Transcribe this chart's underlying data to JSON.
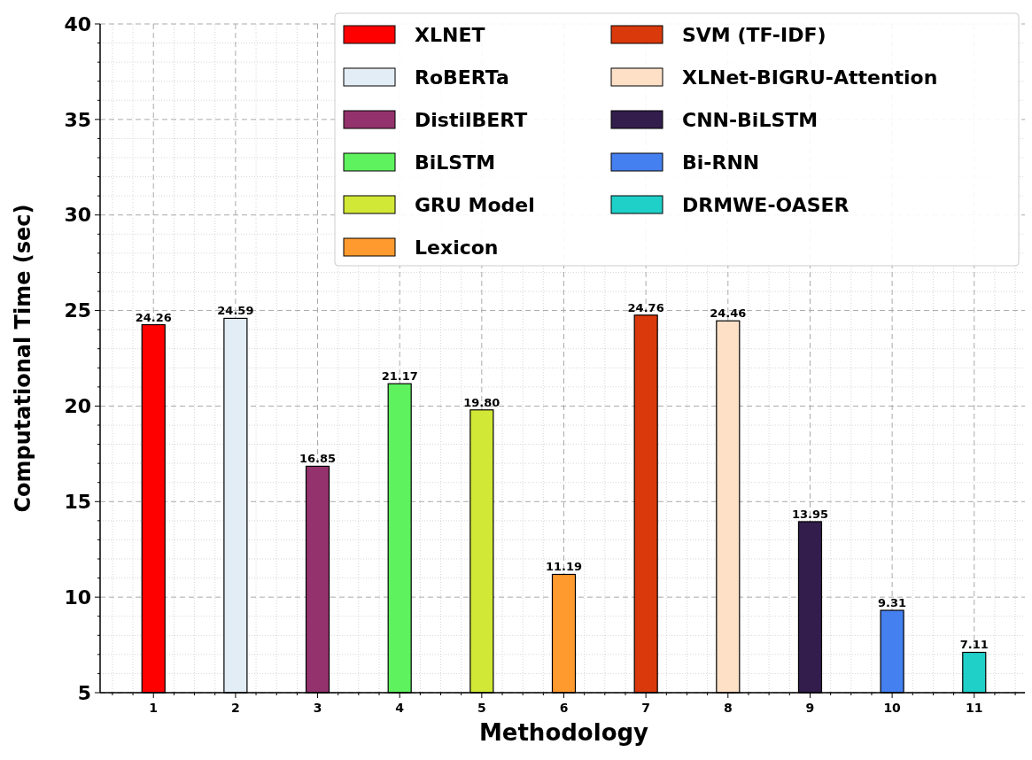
{
  "chart_data": {
    "type": "bar",
    "xlabel": "Methodology",
    "ylabel": "Computational Time (sec)",
    "categories": [
      "1",
      "2",
      "3",
      "4",
      "5",
      "6",
      "7",
      "8",
      "9",
      "10",
      "11"
    ],
    "series": [
      {
        "name": "XLNET",
        "color": "#ff0000",
        "values": [
          24.26,
          null,
          null,
          null,
          null,
          null,
          null,
          null,
          null,
          null,
          null
        ],
        "value_labels": [
          "24.26",
          null,
          null,
          null,
          null,
          null,
          null,
          null,
          null,
          null,
          null
        ]
      },
      {
        "name": "RoBERTa",
        "color": "#e2edf5",
        "values": [
          null,
          24.59,
          null,
          null,
          null,
          null,
          null,
          null,
          null,
          null,
          null
        ],
        "value_labels": [
          null,
          "24.59",
          null,
          null,
          null,
          null,
          null,
          null,
          null,
          null,
          null
        ]
      },
      {
        "name": "DistilBERT",
        "color": "#93326c",
        "values": [
          null,
          null,
          16.85,
          null,
          null,
          null,
          null,
          null,
          null,
          null,
          null
        ],
        "value_labels": [
          null,
          null,
          "16.85",
          null,
          null,
          null,
          null,
          null,
          null,
          null,
          null
        ]
      },
      {
        "name": "BiLSTM",
        "color": "#5ef25e",
        "values": [
          null,
          null,
          null,
          21.17,
          null,
          null,
          null,
          null,
          null,
          null,
          null
        ],
        "value_labels": [
          null,
          null,
          null,
          "21.17",
          null,
          null,
          null,
          null,
          null,
          null,
          null
        ]
      },
      {
        "name": "GRU Model",
        "color": "#d2e836",
        "values": [
          null,
          null,
          null,
          null,
          19.8,
          null,
          null,
          null,
          null,
          null,
          null
        ],
        "value_labels": [
          null,
          null,
          null,
          null,
          "19.80",
          null,
          null,
          null,
          null,
          null,
          null
        ]
      },
      {
        "name": "Lexicon",
        "color": "#ff9a2e",
        "values": [
          null,
          null,
          null,
          null,
          null,
          11.19,
          null,
          null,
          null,
          null,
          null
        ],
        "value_labels": [
          null,
          null,
          null,
          null,
          null,
          "11.19",
          null,
          null,
          null,
          null,
          null
        ]
      },
      {
        "name": "SVM (TF-IDF)",
        "color": "#d9390b",
        "values": [
          null,
          null,
          null,
          null,
          null,
          null,
          24.76,
          null,
          null,
          null,
          null
        ],
        "value_labels": [
          null,
          null,
          null,
          null,
          null,
          null,
          "24.76",
          null,
          null,
          null,
          null
        ]
      },
      {
        "name": "XLNet-BIGRU-Attention",
        "color": "#fde0c6",
        "values": [
          null,
          null,
          null,
          null,
          null,
          null,
          null,
          24.46,
          null,
          null,
          null
        ],
        "value_labels": [
          null,
          null,
          null,
          null,
          null,
          null,
          null,
          "24.46",
          null,
          null,
          null
        ]
      },
      {
        "name": "CNN-BiLSTM",
        "color": "#321d4c",
        "values": [
          null,
          null,
          null,
          null,
          null,
          null,
          null,
          null,
          13.95,
          null,
          null
        ],
        "value_labels": [
          null,
          null,
          null,
          null,
          null,
          null,
          null,
          null,
          "13.95",
          null,
          null
        ]
      },
      {
        "name": "Bi-RNN",
        "color": "#4580f0",
        "values": [
          null,
          null,
          null,
          null,
          null,
          null,
          null,
          null,
          null,
          9.31,
          null
        ],
        "value_labels": [
          null,
          null,
          null,
          null,
          null,
          null,
          null,
          null,
          null,
          "9.31",
          null
        ]
      },
      {
        "name": "DRMWE-OASER",
        "color": "#1fd0c8",
        "values": [
          null,
          null,
          null,
          null,
          null,
          null,
          null,
          null,
          null,
          null,
          7.11
        ],
        "value_labels": [
          null,
          null,
          null,
          null,
          null,
          null,
          null,
          null,
          null,
          null,
          "7.11"
        ]
      }
    ],
    "ylim": [
      5,
      40
    ],
    "yticks": [
      5,
      10,
      15,
      20,
      25,
      30,
      35,
      40
    ],
    "grid": true,
    "legend": "top right"
  }
}
